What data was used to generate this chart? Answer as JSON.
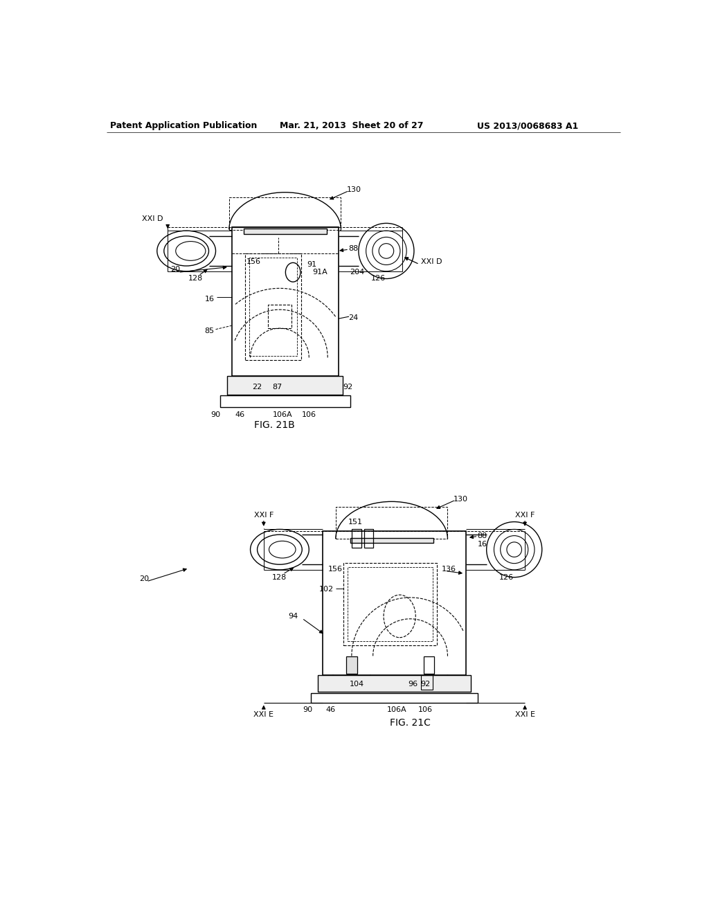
{
  "bg": "#ffffff",
  "header_left": "Patent Application Publication",
  "header_center": "Mar. 21, 2013  Sheet 20 of 27",
  "header_right": "US 2013/0068683 A1",
  "fig21b_caption": "FIG. 21B",
  "fig21c_caption": "FIG. 21C"
}
